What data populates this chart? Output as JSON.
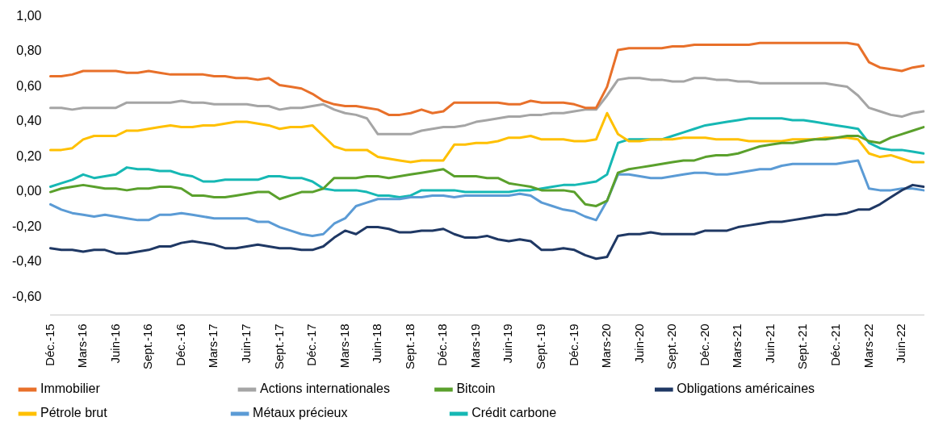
{
  "chart_data": {
    "type": "line",
    "categories": [
      "Déc.-15",
      null,
      null,
      "Mars-16",
      null,
      null,
      "Juin-16",
      null,
      null,
      "Sept.-16",
      null,
      null,
      "Déc.-16",
      null,
      null,
      "Mars-17",
      null,
      null,
      "Juin-17",
      null,
      null,
      "Sept.-17",
      null,
      null,
      "Déc.-17",
      null,
      null,
      "Mars-18",
      null,
      null,
      "Juin-18",
      null,
      null,
      "Sept.-18",
      null,
      null,
      "Déc.-18",
      null,
      null,
      "Mars-19",
      null,
      null,
      "Juin-19",
      null,
      null,
      "Sept.-19",
      null,
      null,
      "Déc.-19",
      null,
      null,
      "Mars-20",
      null,
      null,
      "Juin-20",
      null,
      null,
      "Sept.-20",
      null,
      null,
      "Déc.-20",
      null,
      null,
      "Mars-21",
      null,
      null,
      "Juin-21",
      null,
      null,
      "Sept.-21",
      null,
      null,
      "Déc.-21",
      null,
      null,
      "Mars-22",
      null,
      null,
      "Juin-22",
      null,
      null
    ],
    "ylim": [
      -0.7,
      1.0
    ],
    "yticks": [
      {
        "value": 1.0,
        "label": "1,00"
      },
      {
        "value": 0.8,
        "label": "0,80"
      },
      {
        "value": 0.6,
        "label": "0,60"
      },
      {
        "value": 0.4,
        "label": "0,40"
      },
      {
        "value": 0.2,
        "label": "0,20"
      },
      {
        "value": 0,
        "label": "0,00"
      },
      {
        "value": -0.2,
        "label": "-0,20"
      },
      {
        "value": -0.4,
        "label": "-0,40"
      },
      {
        "value": -0.6,
        "label": "-0,60"
      }
    ],
    "grid": false,
    "legend": "bottom",
    "marker": "none",
    "line_style": "solid",
    "series": [
      {
        "name": "Immobilier",
        "color": "#e8702a",
        "values": [
          0.66,
          0.66,
          0.67,
          0.69,
          0.69,
          0.69,
          0.69,
          0.68,
          0.68,
          0.69,
          0.68,
          0.67,
          0.67,
          0.67,
          0.67,
          0.66,
          0.66,
          0.65,
          0.65,
          0.64,
          0.65,
          0.61,
          0.6,
          0.59,
          0.56,
          0.52,
          0.5,
          0.49,
          0.49,
          0.48,
          0.47,
          0.44,
          0.44,
          0.45,
          0.47,
          0.45,
          0.46,
          0.51,
          0.51,
          0.51,
          0.51,
          0.51,
          0.5,
          0.5,
          0.52,
          0.51,
          0.51,
          0.51,
          0.5,
          0.48,
          0.48,
          0.6,
          0.81,
          0.82,
          0.82,
          0.82,
          0.82,
          0.83,
          0.83,
          0.84,
          0.84,
          0.84,
          0.84,
          0.84,
          0.84,
          0.85,
          0.85,
          0.85,
          0.85,
          0.85,
          0.85,
          0.85,
          0.85,
          0.85,
          0.84,
          0.74,
          0.71,
          0.7,
          0.69,
          0.71,
          0.72
        ]
      },
      {
        "name": "Actions internationales",
        "color": "#a5a5a5",
        "values": [
          0.48,
          0.48,
          0.47,
          0.48,
          0.48,
          0.48,
          0.48,
          0.51,
          0.51,
          0.51,
          0.51,
          0.51,
          0.52,
          0.51,
          0.51,
          0.5,
          0.5,
          0.5,
          0.5,
          0.49,
          0.49,
          0.47,
          0.48,
          0.48,
          0.49,
          0.5,
          0.47,
          0.45,
          0.44,
          0.42,
          0.33,
          0.33,
          0.33,
          0.33,
          0.35,
          0.36,
          0.37,
          0.37,
          0.38,
          0.4,
          0.41,
          0.42,
          0.43,
          0.43,
          0.44,
          0.44,
          0.45,
          0.45,
          0.46,
          0.47,
          0.47,
          0.55,
          0.64,
          0.65,
          0.65,
          0.64,
          0.64,
          0.63,
          0.63,
          0.65,
          0.65,
          0.64,
          0.64,
          0.63,
          0.63,
          0.62,
          0.62,
          0.62,
          0.62,
          0.62,
          0.62,
          0.62,
          0.61,
          0.6,
          0.55,
          0.48,
          0.46,
          0.44,
          0.43,
          0.45,
          0.46
        ]
      },
      {
        "name": "Bitcoin",
        "color": "#5aa02c",
        "values": [
          0.0,
          0.02,
          0.03,
          0.04,
          0.03,
          0.02,
          0.02,
          0.01,
          0.02,
          0.02,
          0.03,
          0.03,
          0.02,
          -0.02,
          -0.02,
          -0.03,
          -0.03,
          -0.02,
          -0.01,
          0.0,
          0.0,
          -0.04,
          -0.02,
          0.0,
          0.0,
          0.02,
          0.08,
          0.08,
          0.08,
          0.09,
          0.09,
          0.08,
          0.09,
          0.1,
          0.11,
          0.12,
          0.13,
          0.09,
          0.09,
          0.09,
          0.08,
          0.08,
          0.05,
          0.04,
          0.03,
          0.01,
          0.01,
          0.01,
          0.0,
          -0.07,
          -0.08,
          -0.05,
          0.11,
          0.13,
          0.14,
          0.15,
          0.16,
          0.17,
          0.18,
          0.18,
          0.2,
          0.21,
          0.21,
          0.22,
          0.24,
          0.26,
          0.27,
          0.28,
          0.28,
          0.29,
          0.3,
          0.3,
          0.31,
          0.32,
          0.32,
          0.29,
          0.28,
          0.31,
          0.33,
          0.35,
          0.37
        ]
      },
      {
        "name": "Obligations américaines",
        "color": "#1f3864",
        "values": [
          -0.32,
          -0.33,
          -0.33,
          -0.34,
          -0.33,
          -0.33,
          -0.35,
          -0.35,
          -0.34,
          -0.33,
          -0.31,
          -0.31,
          -0.29,
          -0.28,
          -0.29,
          -0.3,
          -0.32,
          -0.32,
          -0.31,
          -0.3,
          -0.31,
          -0.32,
          -0.32,
          -0.33,
          -0.33,
          -0.31,
          -0.26,
          -0.22,
          -0.24,
          -0.2,
          -0.2,
          -0.21,
          -0.23,
          -0.23,
          -0.22,
          -0.22,
          -0.21,
          -0.24,
          -0.26,
          -0.26,
          -0.25,
          -0.27,
          -0.28,
          -0.27,
          -0.28,
          -0.33,
          -0.33,
          -0.32,
          -0.33,
          -0.36,
          -0.38,
          -0.37,
          -0.25,
          -0.24,
          -0.24,
          -0.23,
          -0.24,
          -0.24,
          -0.24,
          -0.24,
          -0.22,
          -0.22,
          -0.22,
          -0.2,
          -0.19,
          -0.18,
          -0.17,
          -0.17,
          -0.16,
          -0.15,
          -0.14,
          -0.13,
          -0.13,
          -0.12,
          -0.1,
          -0.1,
          -0.07,
          -0.03,
          0.01,
          0.04,
          0.03
        ]
      },
      {
        "name": "Pétrole brut",
        "color": "#ffc000",
        "values": [
          0.24,
          0.24,
          0.25,
          0.3,
          0.32,
          0.32,
          0.32,
          0.35,
          0.35,
          0.36,
          0.37,
          0.38,
          0.37,
          0.37,
          0.38,
          0.38,
          0.39,
          0.4,
          0.4,
          0.39,
          0.38,
          0.36,
          0.37,
          0.37,
          0.38,
          0.32,
          0.26,
          0.24,
          0.24,
          0.24,
          0.2,
          0.19,
          0.18,
          0.17,
          0.18,
          0.18,
          0.18,
          0.27,
          0.27,
          0.28,
          0.28,
          0.29,
          0.31,
          0.31,
          0.32,
          0.3,
          0.3,
          0.3,
          0.29,
          0.29,
          0.3,
          0.45,
          0.33,
          0.29,
          0.29,
          0.3,
          0.3,
          0.3,
          0.31,
          0.31,
          0.31,
          0.3,
          0.3,
          0.3,
          0.29,
          0.29,
          0.29,
          0.29,
          0.3,
          0.3,
          0.3,
          0.31,
          0.31,
          0.31,
          0.3,
          0.22,
          0.2,
          0.21,
          0.19,
          0.17,
          0.17
        ]
      },
      {
        "name": "Métaux précieux",
        "color": "#5b9bd5",
        "values": [
          -0.07,
          -0.1,
          -0.12,
          -0.13,
          -0.14,
          -0.13,
          -0.14,
          -0.15,
          -0.16,
          -0.16,
          -0.13,
          -0.13,
          -0.12,
          -0.13,
          -0.14,
          -0.15,
          -0.15,
          -0.15,
          -0.15,
          -0.17,
          -0.17,
          -0.2,
          -0.22,
          -0.24,
          -0.25,
          -0.24,
          -0.18,
          -0.15,
          -0.08,
          -0.06,
          -0.04,
          -0.04,
          -0.04,
          -0.03,
          -0.03,
          -0.02,
          -0.02,
          -0.03,
          -0.02,
          -0.02,
          -0.02,
          -0.02,
          -0.02,
          -0.01,
          -0.02,
          -0.06,
          -0.08,
          -0.1,
          -0.11,
          -0.14,
          -0.16,
          -0.05,
          0.1,
          0.1,
          0.09,
          0.08,
          0.08,
          0.09,
          0.1,
          0.11,
          0.11,
          0.1,
          0.1,
          0.11,
          0.12,
          0.13,
          0.13,
          0.15,
          0.16,
          0.16,
          0.16,
          0.16,
          0.16,
          0.17,
          0.18,
          0.02,
          0.01,
          0.01,
          0.02,
          0.02,
          0.01
        ]
      },
      {
        "name": "Crédit carbone",
        "color": "#16b8b4",
        "values": [
          0.03,
          0.05,
          0.07,
          0.1,
          0.08,
          0.09,
          0.1,
          0.14,
          0.13,
          0.13,
          0.12,
          0.12,
          0.1,
          0.09,
          0.06,
          0.06,
          0.07,
          0.07,
          0.07,
          0.07,
          0.09,
          0.09,
          0.08,
          0.08,
          0.06,
          0.02,
          0.01,
          0.01,
          0.01,
          0.0,
          -0.02,
          -0.02,
          -0.03,
          -0.02,
          0.01,
          0.01,
          0.01,
          0.01,
          0.0,
          0.0,
          0.0,
          0.0,
          0.0,
          0.01,
          0.01,
          0.02,
          0.03,
          0.04,
          0.04,
          0.05,
          0.06,
          0.1,
          0.28,
          0.3,
          0.3,
          0.3,
          0.3,
          0.32,
          0.34,
          0.36,
          0.38,
          0.39,
          0.4,
          0.41,
          0.42,
          0.42,
          0.42,
          0.42,
          0.41,
          0.41,
          0.4,
          0.39,
          0.38,
          0.37,
          0.36,
          0.28,
          0.25,
          0.24,
          0.24,
          0.23,
          0.22
        ]
      }
    ]
  }
}
